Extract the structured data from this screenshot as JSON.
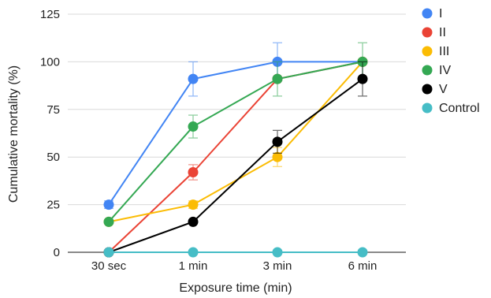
{
  "chart_data": {
    "type": "line",
    "title": "",
    "xlabel": "Exposure time (min)",
    "ylabel": "Cumulative mortality (%)",
    "categories": [
      "30 sec",
      "1 min",
      "3 min",
      "6 min"
    ],
    "yticks": [
      "0",
      "25",
      "50",
      "75",
      "100",
      "125"
    ],
    "ylim": [
      0,
      125
    ],
    "grid": "horizontal",
    "legend_position": "right",
    "series": [
      {
        "name": "I",
        "color": "#4285F4",
        "values": [
          25,
          91,
          100,
          100
        ],
        "errors": [
          2,
          9,
          10,
          0
        ]
      },
      {
        "name": "II",
        "color": "#EA4335",
        "values": [
          0,
          42,
          91,
          100
        ],
        "errors": [
          0,
          4,
          0,
          0
        ]
      },
      {
        "name": "III",
        "color": "#FBBC04",
        "values": [
          16,
          25,
          50,
          100
        ],
        "errors": [
          0,
          2,
          5,
          0
        ]
      },
      {
        "name": "IV",
        "color": "#34A853",
        "values": [
          16,
          66,
          91,
          100
        ],
        "errors": [
          0,
          6,
          9,
          10
        ]
      },
      {
        "name": "V",
        "color": "#000000",
        "values": [
          0,
          16,
          58,
          91
        ],
        "errors": [
          0,
          0,
          6,
          9
        ]
      },
      {
        "name": "Control",
        "color": "#46BDC6",
        "values": [
          0,
          0,
          0,
          0
        ],
        "errors": [
          0,
          0,
          0,
          0
        ]
      }
    ]
  }
}
